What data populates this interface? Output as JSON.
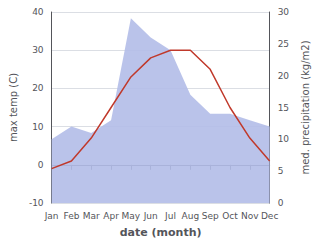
{
  "chart_data": {
    "type": "line",
    "xlabel": "date (month)",
    "ylabel": "max temp (C)",
    "y2label": "med. precipitation (kg/m2)",
    "categories": [
      "Jan",
      "Feb",
      "Mar",
      "Apr",
      "May",
      "Jun",
      "Jul",
      "Aug",
      "Sep",
      "Oct",
      "Nov",
      "Dec"
    ],
    "series": [
      {
        "type": "area",
        "color": "#b3bde8",
        "axis": "y2",
        "values": [
          10,
          12,
          11,
          13,
          29,
          26,
          24,
          17,
          14,
          14,
          13,
          12
        ]
      },
      {
        "type": "line",
        "color": "#c0392b",
        "values": [
          -1,
          1,
          7,
          15,
          23,
          28,
          30,
          30,
          25,
          15,
          7,
          1
        ]
      }
    ],
    "ylim": [
      -10,
      40
    ],
    "yticks": [
      -10,
      0,
      10,
      20,
      30,
      40
    ],
    "y2lim": [
      0,
      30
    ],
    "y2ticks": [
      0,
      5,
      10,
      15,
      20,
      25,
      30
    ],
    "grid": true
  }
}
